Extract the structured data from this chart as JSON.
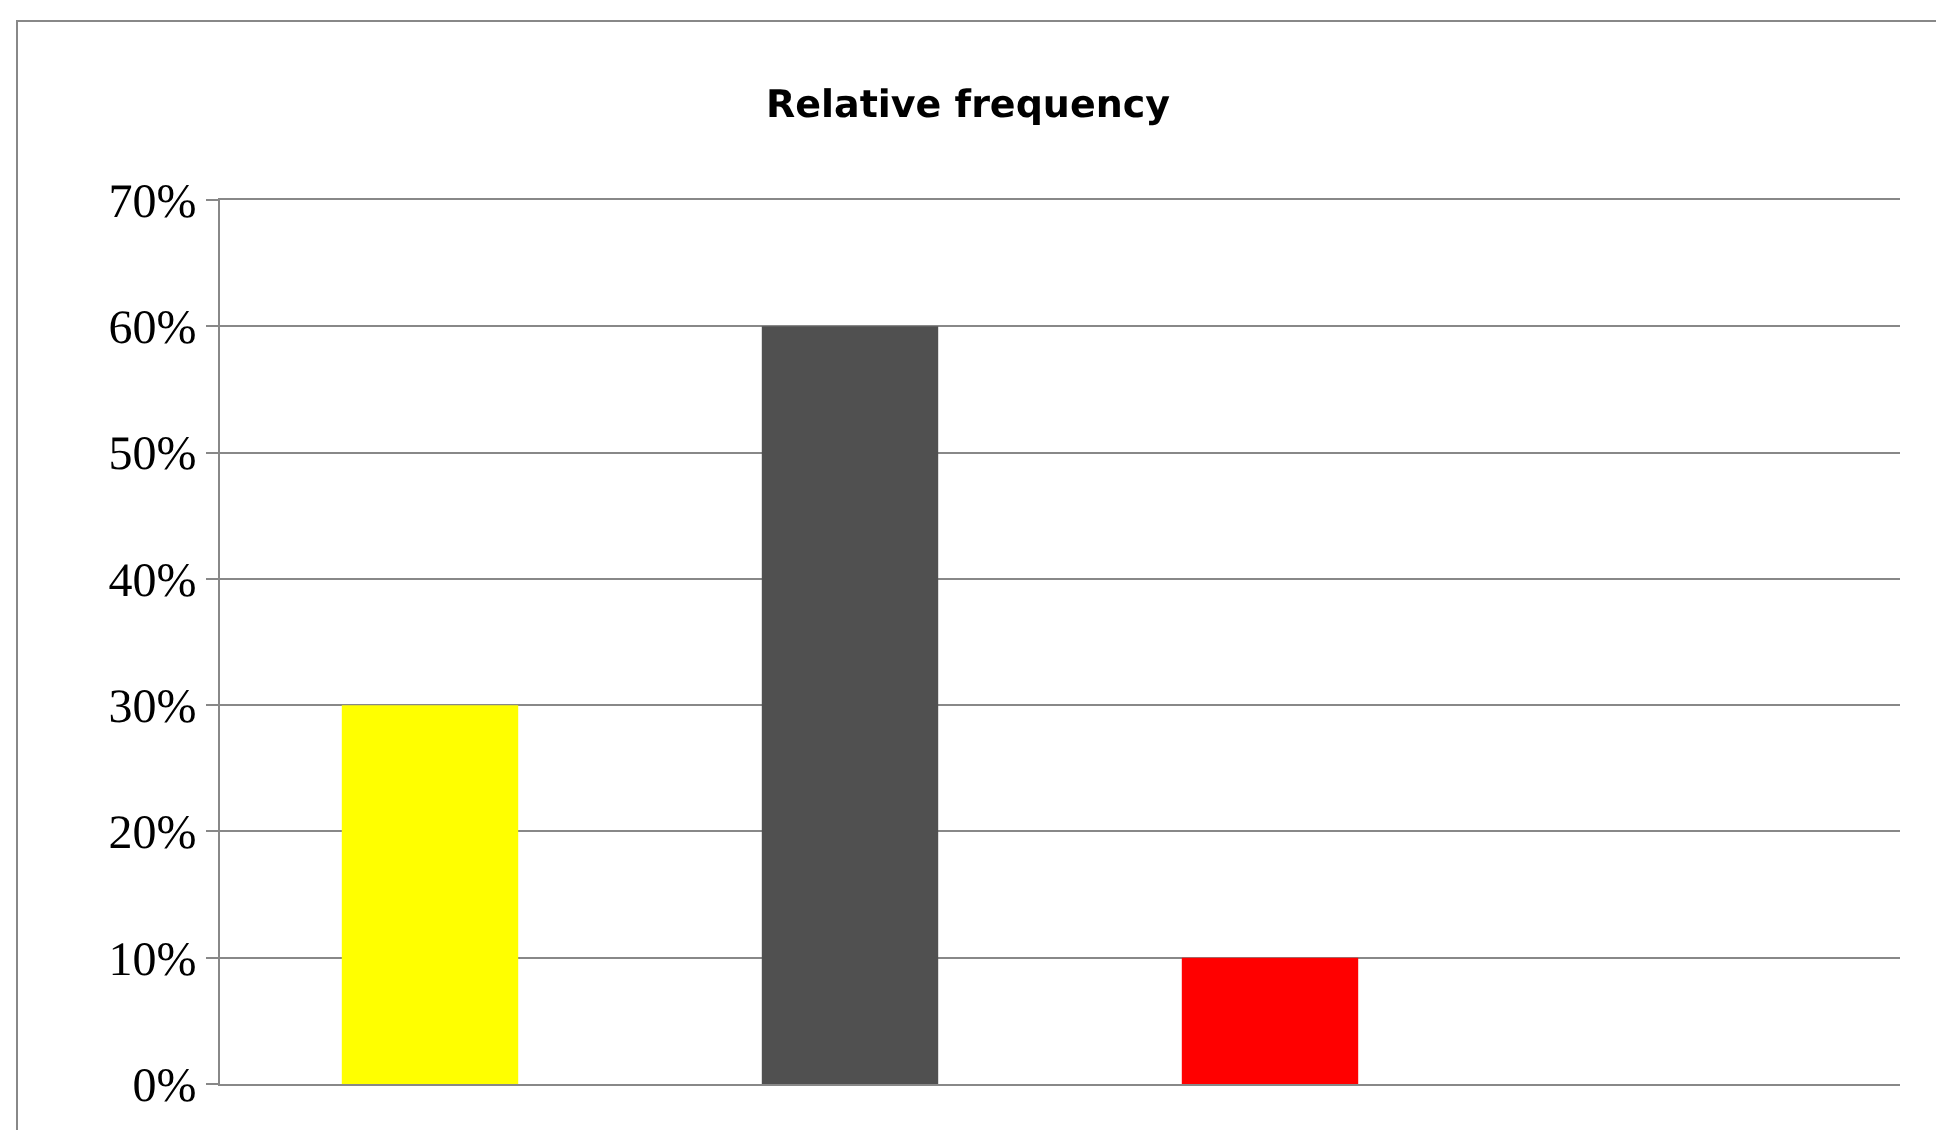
{
  "chart_data": {
    "type": "bar",
    "title": "Relative frequency",
    "categories": [
      null,
      null,
      null,
      null
    ],
    "values": [
      30,
      60,
      10,
      0
    ],
    "colors": [
      "#ffff00",
      "#505050",
      "#ff0000",
      "#505050"
    ],
    "ylim": [
      0,
      70
    ],
    "yticks": [
      {
        "value": 0,
        "label": "0%"
      },
      {
        "value": 10,
        "label": "10%"
      },
      {
        "value": 20,
        "label": "20%"
      },
      {
        "value": 30,
        "label": "30%"
      },
      {
        "value": 40,
        "label": "40%"
      },
      {
        "value": 50,
        "label": "50%"
      },
      {
        "value": 60,
        "label": "60%"
      },
      {
        "value": 70,
        "label": "70%"
      }
    ],
    "grid": "y"
  }
}
